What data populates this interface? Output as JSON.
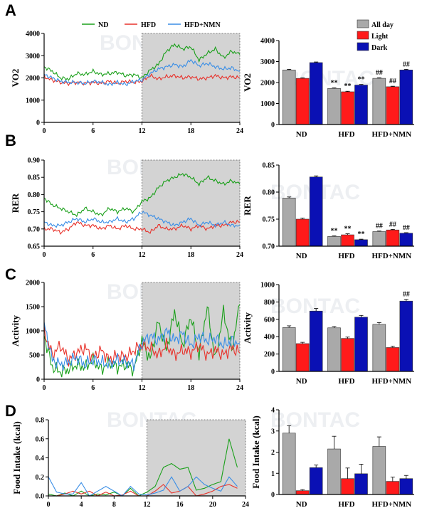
{
  "figure": {
    "panel_letters": [
      "A",
      "B",
      "C",
      "D"
    ],
    "legend_top": [
      {
        "label": "ND",
        "color": "#1aa01a"
      },
      {
        "label": "HFD",
        "color": "#e8322b"
      },
      {
        "label": "HFD+NMN",
        "color": "#3a8ee6"
      }
    ],
    "legend_bar": [
      {
        "label": "All day",
        "color": "#a9a9a9"
      },
      {
        "label": "Light",
        "color": "#ff1a1a"
      },
      {
        "label": "Dark",
        "color": "#0a10b4"
      }
    ],
    "watermark": "BONTAC"
  },
  "chart_data": [
    {
      "id": "A-line",
      "type": "line",
      "ylabel": "VO2",
      "xlabel": "",
      "xlim": [
        0,
        24
      ],
      "ylim": [
        0,
        4000
      ],
      "xticks": [
        0,
        6,
        12,
        18,
        24
      ],
      "yticks": [
        0,
        1000,
        2000,
        3000,
        4000
      ],
      "shaded_x": [
        12,
        24
      ],
      "series": [
        {
          "name": "ND",
          "color": "#1aa01a",
          "x": [
            0,
            1,
            2,
            3,
            4,
            5,
            6,
            7,
            8,
            9,
            10,
            11,
            12,
            13,
            14,
            15,
            16,
            17,
            18,
            19,
            20,
            21,
            22,
            23,
            24
          ],
          "y": [
            2500,
            2300,
            2000,
            1950,
            2200,
            2150,
            2300,
            2150,
            2200,
            2250,
            2100,
            2150,
            2000,
            2350,
            2600,
            3200,
            3500,
            3300,
            3400,
            2800,
            3100,
            3300,
            2900,
            3200,
            3050
          ]
        },
        {
          "name": "HFD",
          "color": "#e8322b",
          "x": [
            0,
            1,
            2,
            3,
            4,
            5,
            6,
            7,
            8,
            9,
            10,
            11,
            12,
            13,
            14,
            15,
            16,
            17,
            18,
            19,
            20,
            21,
            22,
            23,
            24
          ],
          "y": [
            2050,
            1900,
            1800,
            1750,
            1800,
            1750,
            1800,
            1750,
            1850,
            1750,
            1850,
            1800,
            1850,
            2100,
            1950,
            2050,
            2100,
            2000,
            2050,
            1950,
            2000,
            2100,
            2000,
            2050,
            2000
          ]
        },
        {
          "name": "HFD+NMN",
          "color": "#3a8ee6",
          "x": [
            0,
            1,
            2,
            3,
            4,
            5,
            6,
            7,
            8,
            9,
            10,
            11,
            12,
            13,
            14,
            15,
            16,
            17,
            18,
            19,
            20,
            21,
            22,
            23,
            24
          ],
          "y": [
            2150,
            2000,
            1850,
            1800,
            1800,
            1750,
            1850,
            1800,
            1700,
            1800,
            1700,
            1850,
            1900,
            2200,
            2400,
            2500,
            2600,
            2500,
            2800,
            2550,
            2650,
            2500,
            2400,
            2450,
            2300
          ]
        }
      ]
    },
    {
      "id": "A-bar",
      "type": "bar",
      "ylabel": "VO2",
      "categories": [
        "ND",
        "HFD",
        "HFD+NMN"
      ],
      "ylim": [
        0,
        4000
      ],
      "yticks": [
        0,
        1000,
        2000,
        3000,
        4000
      ],
      "series": [
        {
          "name": "All day",
          "color": "#a9a9a9",
          "values": [
            2600,
            1720,
            2200
          ],
          "err": [
            30,
            25,
            30
          ]
        },
        {
          "name": "Light",
          "color": "#ff1a1a",
          "values": [
            2200,
            1560,
            1800
          ],
          "err": [
            25,
            25,
            25
          ]
        },
        {
          "name": "Dark",
          "color": "#0a10b4",
          "values": [
            2950,
            1880,
            2600
          ],
          "err": [
            30,
            30,
            30
          ]
        }
      ],
      "annotations": [
        [
          "",
          "",
          ""
        ],
        [
          "**",
          "**",
          "**"
        ],
        [
          "##",
          "##",
          "##"
        ]
      ]
    },
    {
      "id": "B-line",
      "type": "line",
      "ylabel": "RER",
      "xlabel": "",
      "xlim": [
        0,
        24
      ],
      "ylim": [
        0.65,
        0.9
      ],
      "xticks": [
        0,
        6,
        12,
        18,
        24
      ],
      "yticks": [
        0.65,
        0.7,
        0.75,
        0.8,
        0.85,
        0.9
      ],
      "shaded_x": [
        12,
        24
      ],
      "series": [
        {
          "name": "ND",
          "color": "#1aa01a",
          "x": [
            0,
            1,
            2,
            3,
            4,
            5,
            6,
            7,
            8,
            9,
            10,
            11,
            12,
            13,
            14,
            15,
            16,
            17,
            18,
            19,
            20,
            21,
            22,
            23,
            24
          ],
          "y": [
            0.79,
            0.77,
            0.76,
            0.75,
            0.74,
            0.76,
            0.75,
            0.74,
            0.76,
            0.75,
            0.76,
            0.75,
            0.78,
            0.79,
            0.82,
            0.84,
            0.85,
            0.86,
            0.85,
            0.83,
            0.85,
            0.84,
            0.83,
            0.84,
            0.83
          ]
        },
        {
          "name": "HFD",
          "color": "#e8322b",
          "x": [
            0,
            1,
            2,
            3,
            4,
            5,
            6,
            7,
            8,
            9,
            10,
            11,
            12,
            13,
            14,
            15,
            16,
            17,
            18,
            19,
            20,
            21,
            22,
            23,
            24
          ],
          "y": [
            0.7,
            0.7,
            0.69,
            0.7,
            0.72,
            0.71,
            0.71,
            0.7,
            0.71,
            0.7,
            0.71,
            0.7,
            0.7,
            0.69,
            0.71,
            0.7,
            0.7,
            0.71,
            0.7,
            0.71,
            0.7,
            0.71,
            0.71,
            0.72,
            0.72
          ]
        },
        {
          "name": "HFD+NMN",
          "color": "#3a8ee6",
          "x": [
            0,
            1,
            2,
            3,
            4,
            5,
            6,
            7,
            8,
            9,
            10,
            11,
            12,
            13,
            14,
            15,
            16,
            17,
            18,
            19,
            20,
            21,
            22,
            23,
            24
          ],
          "y": [
            0.72,
            0.71,
            0.71,
            0.72,
            0.73,
            0.72,
            0.73,
            0.72,
            0.72,
            0.73,
            0.72,
            0.73,
            0.75,
            0.74,
            0.73,
            0.72,
            0.71,
            0.72,
            0.73,
            0.71,
            0.72,
            0.71,
            0.72,
            0.71,
            0.71
          ]
        }
      ]
    },
    {
      "id": "B-bar",
      "type": "bar",
      "ylabel": "RER",
      "categories": [
        "ND",
        "HFD",
        "HFD+NMN"
      ],
      "ylim": [
        0.7,
        0.85
      ],
      "yticks": [
        0.7,
        0.75,
        0.8,
        0.85
      ],
      "series": [
        {
          "name": "All day",
          "color": "#a9a9a9",
          "values": [
            0.789,
            0.718,
            0.727
          ],
          "err": [
            0.002,
            0.001,
            0.001
          ]
        },
        {
          "name": "Light",
          "color": "#ff1a1a",
          "values": [
            0.75,
            0.721,
            0.73
          ],
          "err": [
            0.002,
            0.002,
            0.001
          ]
        },
        {
          "name": "Dark",
          "color": "#0a10b4",
          "values": [
            0.828,
            0.712,
            0.724
          ],
          "err": [
            0.002,
            0.001,
            0.001
          ]
        }
      ],
      "annotations": [
        [
          "",
          "",
          ""
        ],
        [
          "**",
          "**",
          "**"
        ],
        [
          "##",
          "##",
          "##"
        ]
      ]
    },
    {
      "id": "C-line",
      "type": "line",
      "ylabel": "Activity",
      "xlabel": "",
      "xlim": [
        0,
        24
      ],
      "ylim": [
        0,
        2000
      ],
      "xticks": [
        0,
        6,
        12,
        18,
        24
      ],
      "yticks": [
        0,
        500,
        1000,
        1500,
        2000
      ],
      "shaded_x": [
        12,
        24
      ],
      "series": [
        {
          "name": "ND",
          "color": "#1aa01a",
          "x": [
            0,
            1,
            2,
            3,
            4,
            5,
            6,
            7,
            8,
            9,
            10,
            11,
            12,
            13,
            14,
            15,
            16,
            17,
            18,
            19,
            20,
            21,
            22,
            23,
            24
          ],
          "y": [
            900,
            250,
            150,
            200,
            300,
            250,
            400,
            200,
            350,
            250,
            300,
            200,
            800,
            400,
            1200,
            600,
            1400,
            700,
            1300,
            500,
            1500,
            400,
            1400,
            600,
            1550
          ]
        },
        {
          "name": "HFD",
          "color": "#e8322b",
          "x": [
            0,
            1,
            2,
            3,
            4,
            5,
            6,
            7,
            8,
            9,
            10,
            11,
            12,
            13,
            14,
            15,
            16,
            17,
            18,
            19,
            20,
            21,
            22,
            23,
            24
          ],
          "y": [
            1000,
            500,
            700,
            400,
            550,
            650,
            450,
            600,
            400,
            500,
            450,
            600,
            700,
            650,
            500,
            700,
            500,
            600,
            550,
            700,
            500,
            600,
            500,
            650,
            550
          ]
        },
        {
          "name": "HFD+NMN",
          "color": "#3a8ee6",
          "x": [
            0,
            1,
            2,
            3,
            4,
            5,
            6,
            7,
            8,
            9,
            10,
            11,
            12,
            13,
            14,
            15,
            16,
            17,
            18,
            19,
            20,
            21,
            22,
            23,
            24
          ],
          "y": [
            1150,
            400,
            300,
            350,
            450,
            300,
            400,
            350,
            300,
            400,
            350,
            300,
            750,
            900,
            800,
            1000,
            800,
            950,
            700,
            900,
            800,
            850,
            700,
            800,
            750
          ]
        }
      ]
    },
    {
      "id": "C-bar",
      "type": "bar",
      "ylabel": "Activity",
      "categories": [
        "ND",
        "HFD",
        "HFD+NMN"
      ],
      "ylim": [
        0,
        1000
      ],
      "yticks": [
        0,
        200,
        400,
        600,
        800,
        1000
      ],
      "series": [
        {
          "name": "All day",
          "color": "#a9a9a9",
          "values": [
            505,
            502,
            542
          ],
          "err": [
            20,
            15,
            20
          ]
        },
        {
          "name": "Light",
          "color": "#ff1a1a",
          "values": [
            320,
            380,
            275
          ],
          "err": [
            15,
            15,
            15
          ]
        },
        {
          "name": "Dark",
          "color": "#0a10b4",
          "values": [
            695,
            625,
            810
          ],
          "err": [
            30,
            20,
            20
          ]
        }
      ],
      "annotations": [
        [
          "",
          "",
          ""
        ],
        [
          "",
          "",
          ""
        ],
        [
          "",
          "",
          "##"
        ]
      ]
    },
    {
      "id": "D-line",
      "type": "line",
      "ylabel": "Food Intake (kcal)",
      "xlabel": "",
      "xlim": [
        0,
        24
      ],
      "ylim": [
        0,
        0.8
      ],
      "xticks": [
        0,
        4,
        8,
        12,
        16,
        20,
        24
      ],
      "yticks": [
        0.0,
        0.2,
        0.4,
        0.6,
        0.8
      ],
      "shaded_x": [
        12,
        24
      ],
      "series": [
        {
          "name": "ND",
          "color": "#1aa01a",
          "x": [
            0,
            1,
            2,
            3,
            4,
            5,
            6,
            7,
            8,
            9,
            10,
            11,
            12,
            13,
            14,
            15,
            16,
            17,
            18,
            19,
            20,
            21,
            22,
            23
          ],
          "y": [
            0.02,
            0.0,
            0.03,
            0.0,
            0.05,
            0.0,
            0.02,
            0.01,
            0.04,
            0.0,
            0.08,
            0.0,
            0.04,
            0.1,
            0.3,
            0.34,
            0.28,
            0.3,
            0.06,
            0.08,
            0.12,
            0.15,
            0.6,
            0.3
          ]
        },
        {
          "name": "HFD",
          "color": "#e8322b",
          "x": [
            0,
            1,
            2,
            3,
            4,
            5,
            6,
            7,
            8,
            9,
            10,
            11,
            12,
            13,
            14,
            15,
            16,
            17,
            18,
            19,
            20,
            21,
            22,
            23
          ],
          "y": [
            0.0,
            0.0,
            0.02,
            0.05,
            0.02,
            0.05,
            0.0,
            0.04,
            0.0,
            0.01,
            0.05,
            0.0,
            0.0,
            0.05,
            0.12,
            0.03,
            0.05,
            0.1,
            0.0,
            0.02,
            0.05,
            0.1,
            0.12,
            0.08
          ]
        },
        {
          "name": "HFD+NMN",
          "color": "#3a8ee6",
          "x": [
            0,
            1,
            2,
            3,
            4,
            5,
            6,
            7,
            8,
            9,
            10,
            11,
            12,
            13,
            14,
            15,
            16,
            17,
            18,
            19,
            20,
            21,
            22,
            23
          ],
          "y": [
            0.2,
            0.04,
            0.02,
            0.02,
            0.14,
            0.0,
            0.05,
            0.1,
            0.05,
            0.0,
            0.1,
            0.02,
            0.01,
            0.03,
            0.06,
            0.2,
            0.05,
            0.1,
            0.2,
            0.12,
            0.08,
            0.05,
            0.2,
            0.1
          ]
        }
      ]
    },
    {
      "id": "D-bar",
      "type": "bar",
      "ylabel": "Food Intake (kcal)",
      "categories": [
        "ND",
        "HFD",
        "HFD+NMN"
      ],
      "ylim": [
        0,
        4
      ],
      "yticks": [
        0,
        1,
        2,
        3,
        4
      ],
      "series": [
        {
          "name": "All day",
          "color": "#a9a9a9",
          "values": [
            2.9,
            2.15,
            2.27
          ],
          "err": [
            0.35,
            0.6,
            0.45
          ]
        },
        {
          "name": "Light",
          "color": "#ff1a1a",
          "values": [
            0.18,
            0.75,
            0.62
          ],
          "err": [
            0.05,
            0.5,
            0.2
          ]
        },
        {
          "name": "Dark",
          "color": "#0a10b4",
          "values": [
            1.27,
            0.98,
            0.75
          ],
          "err": [
            0.12,
            0.45,
            0.15
          ]
        }
      ],
      "annotations": [
        [
          "",
          "",
          ""
        ],
        [
          "",
          "",
          ""
        ],
        [
          "",
          "",
          ""
        ]
      ]
    }
  ]
}
